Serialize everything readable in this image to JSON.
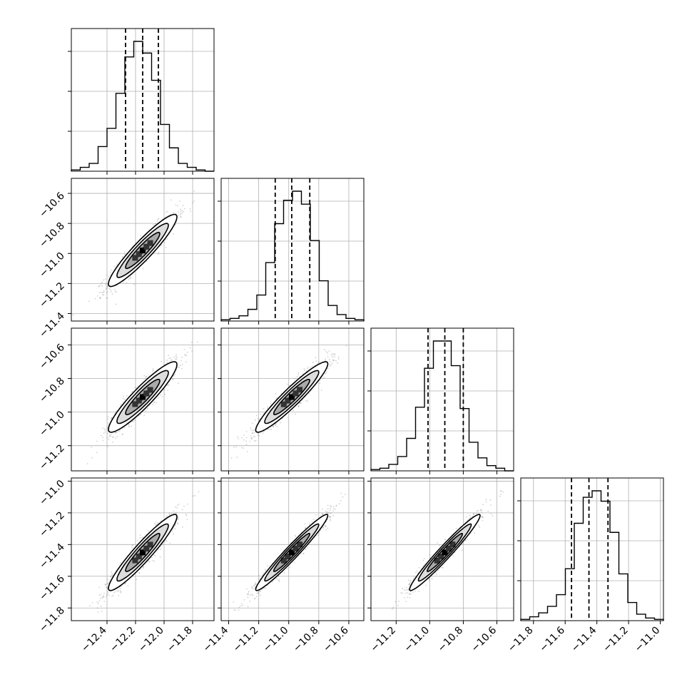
{
  "chart_data": {
    "type": "corner",
    "title": "",
    "grid": true,
    "parameters": [
      {
        "index": 0,
        "range": [
          -12.65,
          -11.65
        ],
        "quantiles": [
          -12.27,
          -12.15,
          -12.04
        ],
        "hist_ticks": [
          -12.4,
          -12.2,
          -12.0,
          -11.8
        ],
        "tick_labels": [
          "−12.4",
          "−12.2",
          "−12.0",
          "−11.8"
        ],
        "hist": [
          0.01,
          0.03,
          0.06,
          0.19,
          0.33,
          0.6,
          0.88,
          1.0,
          0.91,
          0.7,
          0.36,
          0.18,
          0.06,
          0.03,
          0.01,
          0.0
        ]
      },
      {
        "index": 1,
        "range": [
          -11.45,
          -10.5
        ],
        "quantiles": [
          -11.09,
          -10.98,
          -10.86
        ],
        "hist_ticks": [
          -11.4,
          -11.2,
          -11.0,
          -10.8,
          -10.6
        ],
        "tick_labels": [
          "−11.4",
          "−11.2",
          "−11.0",
          "−10.8",
          "−10.6"
        ],
        "axis_ticks": [
          -11.4,
          -11.2,
          -11.0,
          -10.8,
          -10.6
        ],
        "axis_tick_labels": [
          "−11.4",
          "−11.2",
          "−11.0",
          "−10.8",
          "−10.6"
        ],
        "hist": [
          0.01,
          0.02,
          0.04,
          0.09,
          0.2,
          0.45,
          0.75,
          0.93,
          1.0,
          0.9,
          0.62,
          0.31,
          0.12,
          0.05,
          0.02,
          0.01
        ]
      },
      {
        "index": 2,
        "range": [
          -11.35,
          -10.5
        ],
        "quantiles": [
          -11.01,
          -10.91,
          -10.8
        ],
        "hist_ticks": [
          -11.2,
          -11.0,
          -10.8,
          -10.6
        ],
        "tick_labels": [
          "−11.2",
          "−11.0",
          "−10.8",
          "−10.6"
        ],
        "axis_ticks": [
          -11.2,
          -11.0,
          -10.8,
          -10.6
        ],
        "axis_tick_labels": [
          "−11.2",
          "−11.0",
          "−10.8",
          "−10.6"
        ],
        "hist": [
          0.01,
          0.02,
          0.05,
          0.11,
          0.25,
          0.49,
          0.79,
          1.0,
          1.0,
          0.81,
          0.48,
          0.22,
          0.1,
          0.04,
          0.02,
          0.0
        ]
      },
      {
        "index": 3,
        "range": [
          -11.88,
          -10.98
        ],
        "quantiles": [
          -11.56,
          -11.45,
          -11.33
        ],
        "hist_ticks": [
          -11.8,
          -11.6,
          -11.4,
          -11.2,
          -11.0
        ],
        "tick_labels": [
          "−11.8",
          "−11.6",
          "−11.4",
          "−11.2",
          "−11.0"
        ],
        "axis_ticks": [
          -11.8,
          -11.6,
          -11.4,
          -11.2,
          -11.0
        ],
        "axis_tick_labels": [
          "−11.8",
          "−11.6",
          "−11.4",
          "−11.2",
          "−11.0"
        ],
        "hist": [
          0.01,
          0.03,
          0.06,
          0.11,
          0.2,
          0.4,
          0.75,
          0.95,
          1.0,
          0.92,
          0.68,
          0.36,
          0.14,
          0.05,
          0.02,
          0.01
        ]
      }
    ],
    "pairs": [
      {
        "row": 1,
        "col": 0,
        "mean": [
          -12.15,
          -10.98
        ],
        "sd": [
          0.12,
          0.12
        ],
        "corr": 0.93
      },
      {
        "row": 2,
        "col": 0,
        "mean": [
          -12.15,
          -10.91
        ],
        "sd": [
          0.12,
          0.105
        ],
        "corr": 0.92
      },
      {
        "row": 2,
        "col": 1,
        "mean": [
          -10.98,
          -10.91
        ],
        "sd": [
          0.12,
          0.105
        ],
        "corr": 0.94
      },
      {
        "row": 3,
        "col": 0,
        "mean": [
          -12.15,
          -11.45
        ],
        "sd": [
          0.12,
          0.12
        ],
        "corr": 0.94
      },
      {
        "row": 3,
        "col": 1,
        "mean": [
          -10.98,
          -11.45
        ],
        "sd": [
          0.12,
          0.12
        ],
        "corr": 0.97
      },
      {
        "row": 3,
        "col": 2,
        "mean": [
          -10.91,
          -11.45
        ],
        "sd": [
          0.105,
          0.12
        ],
        "corr": 0.97
      }
    ],
    "contour_levels_sigma": [
      0.5,
      1.0,
      1.5,
      2.0
    ],
    "colors": {
      "scatter": "#7f7f7f",
      "line": "#000000",
      "grid": "#b0b0b0",
      "density_light": "#e8e8e8",
      "density_dark": "#000000"
    }
  }
}
